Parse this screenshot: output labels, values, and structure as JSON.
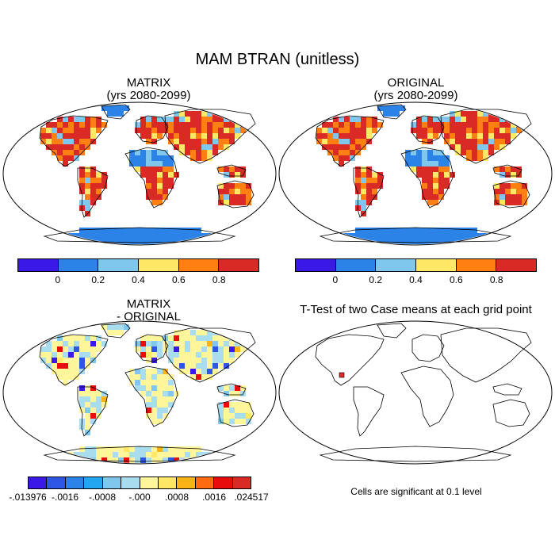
{
  "title": "MAM BTRAN (unitless)",
  "panels": [
    {
      "title_line1": "MATRIX",
      "title_line2": "(yrs 2080-2099)"
    },
    {
      "title_line1": "ORIGINAL",
      "title_line2": "(yrs 2080-2099)"
    },
    {
      "title_line1": "MATRIX",
      "title_line2": "- ORIGINAL"
    },
    {
      "title_line1": "T-Test of two Case means at each grid point",
      "title_line2": ""
    }
  ],
  "colorbar_top": {
    "colors": [
      "#3a19e6",
      "#2b83e8",
      "#7fc7ec",
      "#ffe866",
      "#ff8012",
      "#d92a26"
    ],
    "ticks": [
      "0",
      "0.2",
      "0.4",
      "0.6",
      "0.8"
    ]
  },
  "colorbar_diff": {
    "colors": [
      "#3a19e6",
      "#2d55e6",
      "#2b83e8",
      "#22a6f0",
      "#7fc7ec",
      "#a8dcef",
      "#fff59b",
      "#ffe866",
      "#fcb315",
      "#ff6b10",
      "#e80c0c",
      "#d92a26"
    ],
    "ticks": [
      "-.013976",
      "-.0016",
      "-.0008",
      "-.000",
      ".0008",
      ".0016",
      ".024517"
    ]
  },
  "significance_note": "Cells are significant at 0.1 level"
}
